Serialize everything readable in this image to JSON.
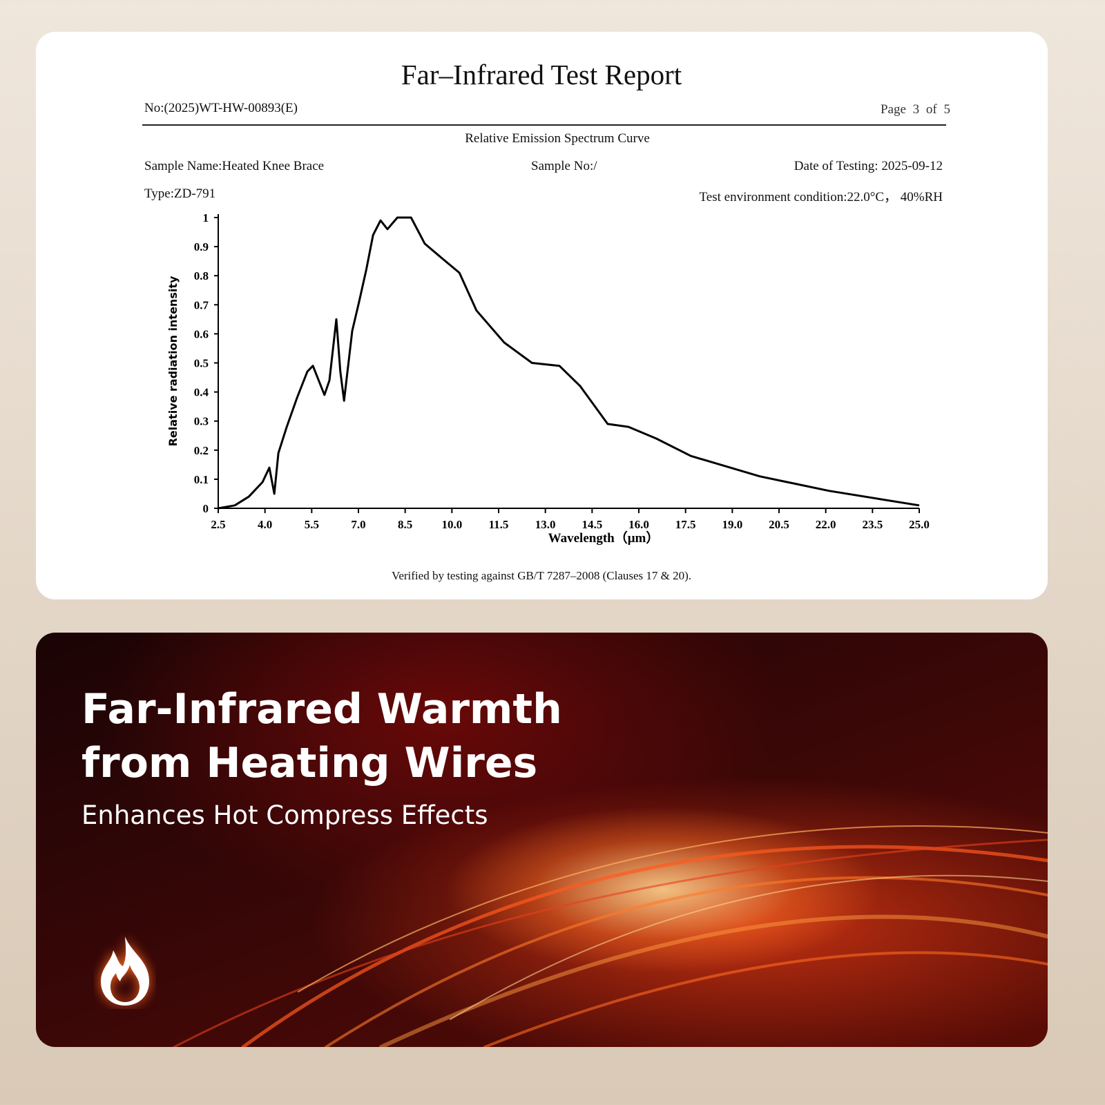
{
  "report": {
    "title": "Far–Infrared Test Report",
    "number": "No:(2025)WT-HW-00893(E)",
    "page": "Page 3 of 5",
    "sample_name": "Sample Name:Heated Knee Brace",
    "sample_no": "Sample No:/",
    "date": "Date of Testing: 2025-09-12",
    "type": "Type:ZD-791",
    "environment": "Test environment condition:22.0°C， 40%RH",
    "footnote": "Verified by testing against GB/T 7287–2008 (Clauses 17 & 20)."
  },
  "chart_data": {
    "type": "line",
    "title": "Relative Emission Spectrum Curve",
    "x_label": "Wavelength（μm）",
    "y_label": "Relative radiation intensity",
    "x": [
      2.5,
      3.03,
      3.48,
      3.92,
      4.14,
      4.3,
      4.43,
      4.7,
      5.03,
      5.36,
      5.54,
      5.76,
      5.91,
      6.07,
      6.29,
      6.42,
      6.54,
      6.8,
      7.02,
      7.25,
      7.47,
      7.71,
      7.93,
      8.25,
      8.69,
      9.13,
      9.68,
      10.24,
      10.79,
      11.68,
      12.57,
      13.45,
      14.12,
      15.0,
      15.67,
      16.56,
      17.67,
      19.88,
      22.1,
      25.0
    ],
    "series": [
      {
        "color": "#000000",
        "values": [
          0,
          0.01,
          0.04,
          0.09,
          0.14,
          0.05,
          0.19,
          0.28,
          0.38,
          0.47,
          0.49,
          0.43,
          0.39,
          0.44,
          0.65,
          0.47,
          0.37,
          0.61,
          0.71,
          0.82,
          0.94,
          0.99,
          0.96,
          1.0,
          1.0,
          0.91,
          0.86,
          0.81,
          0.68,
          0.57,
          0.5,
          0.49,
          0.42,
          0.29,
          0.28,
          0.24,
          0.18,
          0.11,
          0.06,
          0.01
        ]
      }
    ],
    "xlim": [
      2.5,
      25.0
    ],
    "xticks": [
      2.5,
      {
        "value": 4,
        "label": "4.0"
      },
      5.5,
      {
        "value": 7,
        "label": "7.0"
      },
      8.5,
      {
        "value": 10,
        "label": "10.0"
      },
      11.5,
      {
        "value": 13,
        "label": "13.0"
      },
      14.5,
      {
        "value": 16,
        "label": "16.0"
      },
      17.5,
      {
        "value": 19,
        "label": "19.0"
      },
      20.5,
      {
        "value": 22,
        "label": "22.0"
      },
      23.5,
      {
        "value": 25,
        "label": "25.0"
      }
    ],
    "ylim": [
      0,
      1
    ],
    "yticks": [
      0,
      0.1,
      0.2,
      0.3,
      0.4,
      0.5,
      0.6,
      0.7,
      0.8,
      0.9,
      1
    ]
  },
  "banner": {
    "title_lines": [
      "Far-Infrared Warmth",
      "from Heating Wires"
    ],
    "subtitle": "Enhances Hot Compress Effects"
  }
}
